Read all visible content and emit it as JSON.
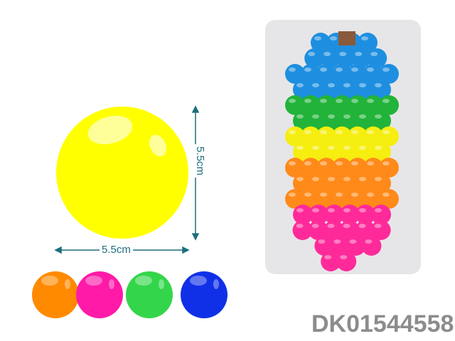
{
  "product": {
    "code": "DK01544558",
    "dimension_width": "5.5cm",
    "dimension_height": "5.5cm",
    "main_ball_color": "#ffff00",
    "color_options": [
      "#ff8a00",
      "#ff1aa8",
      "#33d64a",
      "#1030e8"
    ],
    "package_colors": [
      "#1e8fe0",
      "#22b33a",
      "#f5ee10",
      "#ff8a1a",
      "#ff2a9a"
    ],
    "arrow_color": "#1d6e7e"
  }
}
